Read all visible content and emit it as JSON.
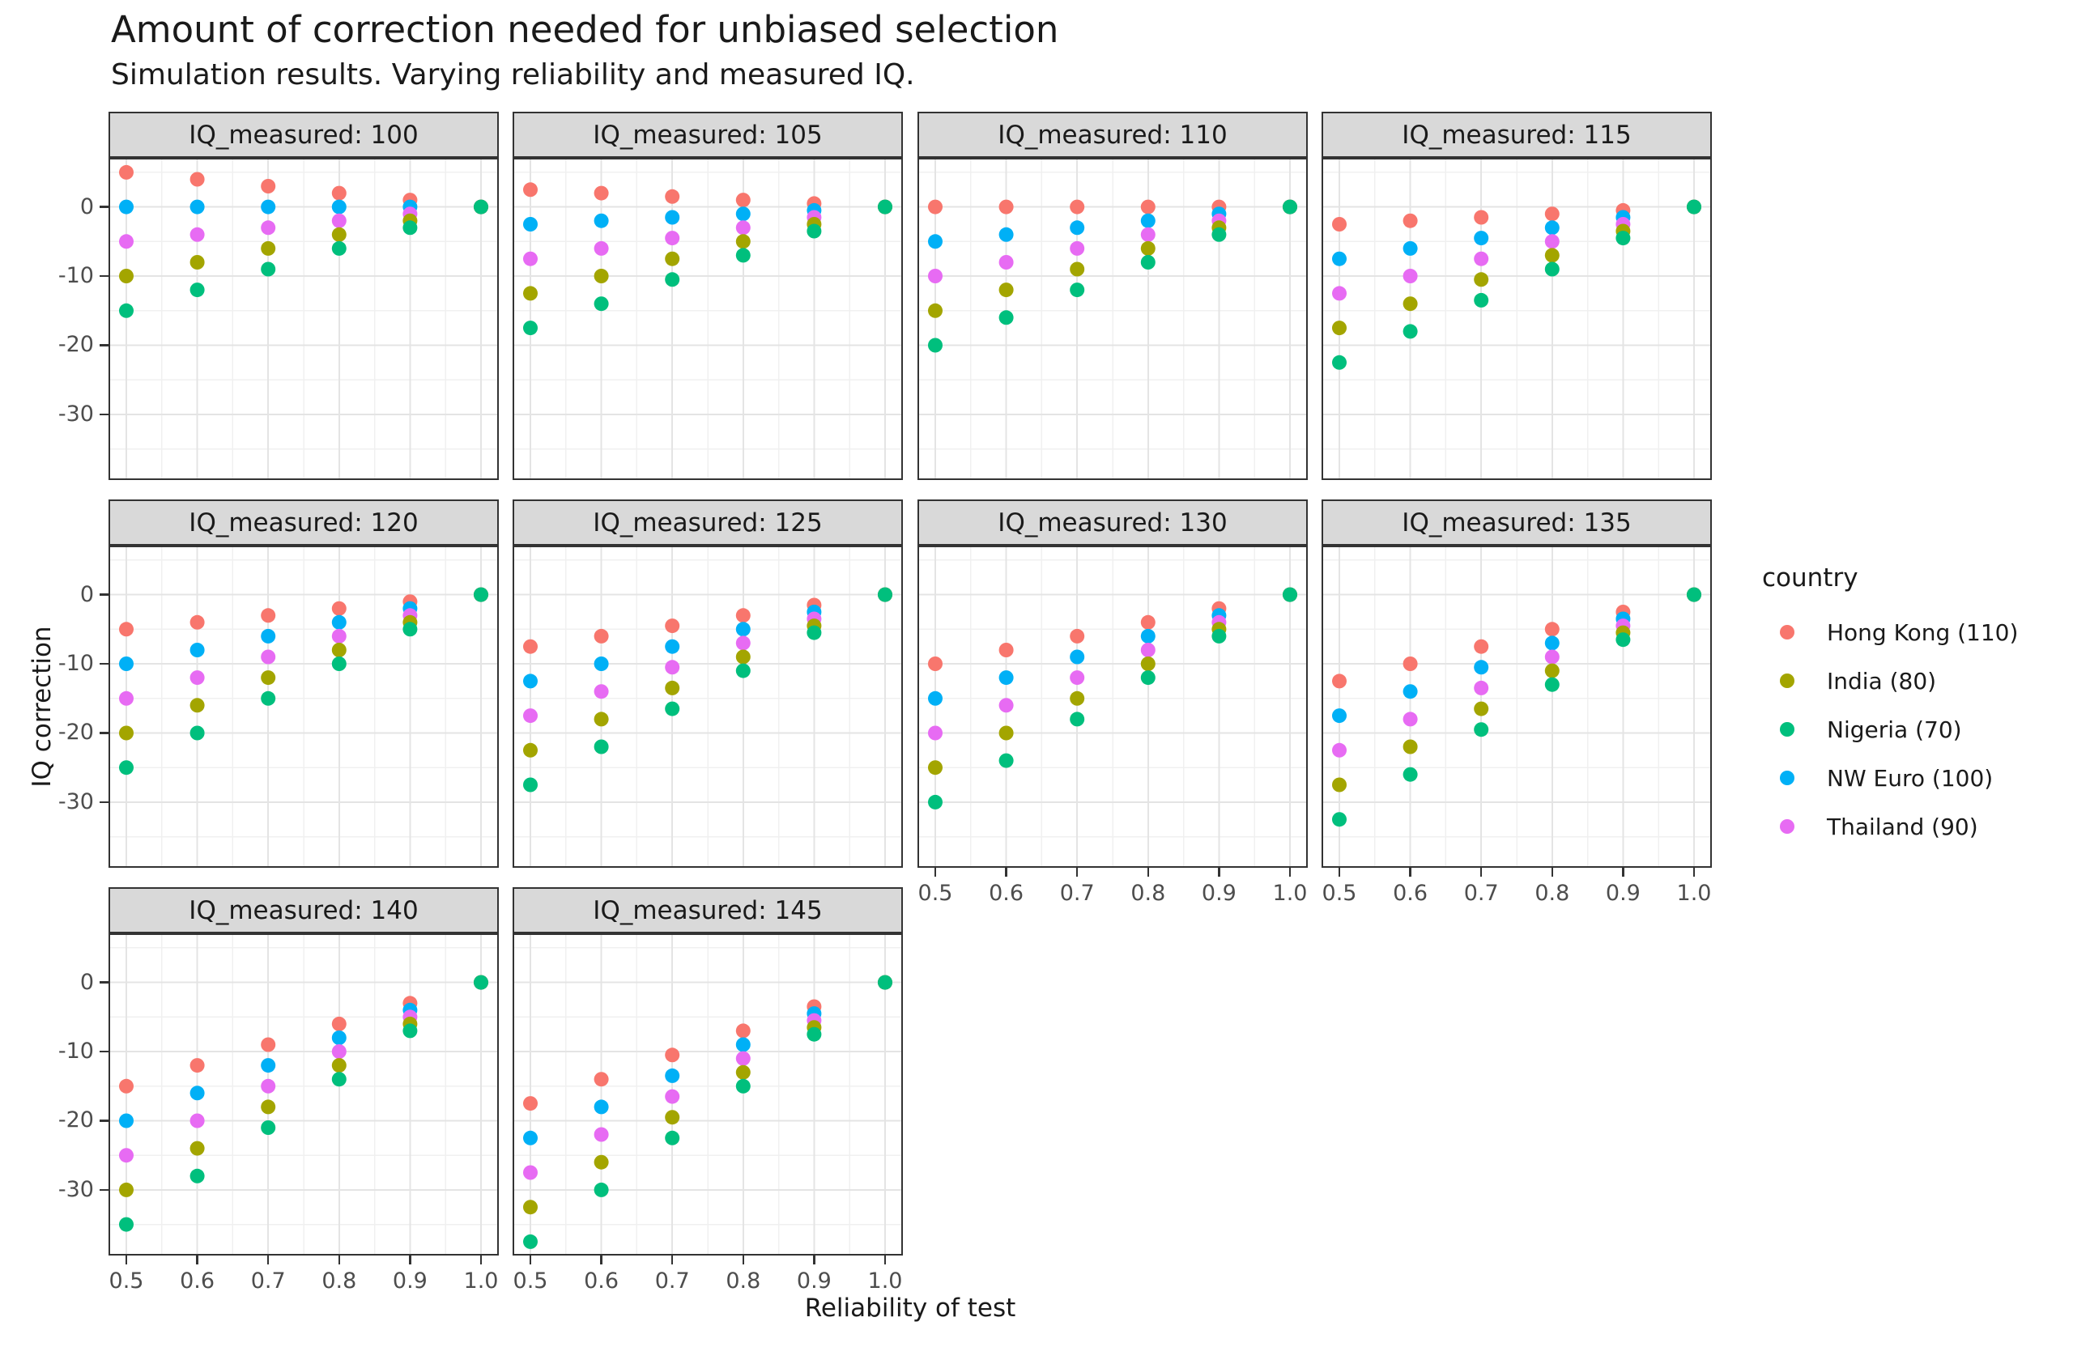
{
  "title": "Amount of correction needed for unbiased selection",
  "subtitle": "Simulation results. Varying reliability and measured IQ.",
  "axes": {
    "x_title": "Reliability of test",
    "y_title": "IQ correction",
    "x_tick_labels": [
      "0.5",
      "0.6",
      "0.7",
      "0.8",
      "0.9",
      "1.0"
    ],
    "y_tick_labels": [
      "0",
      "-10",
      "-20",
      "-30"
    ]
  },
  "legend": {
    "title": "country",
    "entries": [
      {
        "label": "Hong Kong (110)",
        "color": "#F8766D"
      },
      {
        "label": "India (80)",
        "color": "#A3A500"
      },
      {
        "label": "Nigeria (70)",
        "color": "#00BF7D"
      },
      {
        "label": "NW Euro (100)",
        "color": "#00B0F6"
      },
      {
        "label": "Thailand (90)",
        "color": "#E76BF3"
      }
    ],
    "position": "right"
  },
  "chart_data": {
    "type": "scatter",
    "facet_variable": "IQ_measured",
    "xlabel": "Reliability of test",
    "ylabel": "IQ correction",
    "x": [
      0.5,
      0.6,
      0.7,
      0.8,
      0.9,
      1.0
    ],
    "xlim": [
      0.475,
      1.025
    ],
    "ylim": [
      -39.5,
      7.1
    ],
    "x_ticks": [
      0.5,
      0.6,
      0.7,
      0.8,
      0.9,
      1.0
    ],
    "y_ticks": [
      0,
      -10,
      -20,
      -30
    ],
    "x_minor_ticks": [
      0.55,
      0.65,
      0.75,
      0.85,
      0.95
    ],
    "y_minor_ticks": [
      5,
      -5,
      -15,
      -25,
      -35
    ],
    "grid": true,
    "legend_title": "country",
    "facets": [
      {
        "label": "IQ_measured: 100",
        "iq_measured": 100,
        "series": [
          {
            "name": "Hong Kong (110)",
            "values": [
              5,
              4,
              3,
              2,
              1,
              0
            ]
          },
          {
            "name": "India (80)",
            "values": [
              -10,
              -8,
              -6,
              -4,
              -2,
              0
            ]
          },
          {
            "name": "Nigeria (70)",
            "values": [
              -15,
              -12,
              -9,
              -6,
              -3,
              0
            ]
          },
          {
            "name": "NW Euro (100)",
            "values": [
              0,
              0,
              0,
              0,
              0,
              0
            ]
          },
          {
            "name": "Thailand (90)",
            "values": [
              -5,
              -4,
              -3,
              -2,
              -1,
              0
            ]
          }
        ]
      },
      {
        "label": "IQ_measured: 105",
        "iq_measured": 105,
        "series": [
          {
            "name": "Hong Kong (110)",
            "values": [
              2.5,
              2,
              1.5,
              1,
              0.5,
              0
            ]
          },
          {
            "name": "India (80)",
            "values": [
              -12.5,
              -10,
              -7.5,
              -5,
              -2.5,
              0
            ]
          },
          {
            "name": "Nigeria (70)",
            "values": [
              -17.5,
              -14,
              -10.5,
              -7,
              -3.5,
              0
            ]
          },
          {
            "name": "NW Euro (100)",
            "values": [
              -2.5,
              -2,
              -1.5,
              -1,
              -0.5,
              0
            ]
          },
          {
            "name": "Thailand (90)",
            "values": [
              -7.5,
              -6,
              -4.5,
              -3,
              -1.5,
              0
            ]
          }
        ]
      },
      {
        "label": "IQ_measured: 110",
        "iq_measured": 110,
        "series": [
          {
            "name": "Hong Kong (110)",
            "values": [
              0,
              0,
              0,
              0,
              0,
              0
            ]
          },
          {
            "name": "India (80)",
            "values": [
              -15,
              -12,
              -9,
              -6,
              -3,
              0
            ]
          },
          {
            "name": "Nigeria (70)",
            "values": [
              -20,
              -16,
              -12,
              -8,
              -4,
              0
            ]
          },
          {
            "name": "NW Euro (100)",
            "values": [
              -5,
              -4,
              -3,
              -2,
              -1,
              0
            ]
          },
          {
            "name": "Thailand (90)",
            "values": [
              -10,
              -8,
              -6,
              -4,
              -2,
              0
            ]
          }
        ]
      },
      {
        "label": "IQ_measured: 115",
        "iq_measured": 115,
        "series": [
          {
            "name": "Hong Kong (110)",
            "values": [
              -2.5,
              -2,
              -1.5,
              -1,
              -0.5,
              0
            ]
          },
          {
            "name": "India (80)",
            "values": [
              -17.5,
              -14,
              -10.5,
              -7,
              -3.5,
              0
            ]
          },
          {
            "name": "Nigeria (70)",
            "values": [
              -22.5,
              -18,
              -13.5,
              -9,
              -4.5,
              0
            ]
          },
          {
            "name": "NW Euro (100)",
            "values": [
              -7.5,
              -6,
              -4.5,
              -3,
              -1.5,
              0
            ]
          },
          {
            "name": "Thailand (90)",
            "values": [
              -12.5,
              -10,
              -7.5,
              -5,
              -2.5,
              0
            ]
          }
        ]
      },
      {
        "label": "IQ_measured: 120",
        "iq_measured": 120,
        "series": [
          {
            "name": "Hong Kong (110)",
            "values": [
              -5,
              -4,
              -3,
              -2,
              -1,
              0
            ]
          },
          {
            "name": "India (80)",
            "values": [
              -20,
              -16,
              -12,
              -8,
              -4,
              0
            ]
          },
          {
            "name": "Nigeria (70)",
            "values": [
              -25,
              -20,
              -15,
              -10,
              -5,
              0
            ]
          },
          {
            "name": "NW Euro (100)",
            "values": [
              -10,
              -8,
              -6,
              -4,
              -2,
              0
            ]
          },
          {
            "name": "Thailand (90)",
            "values": [
              -15,
              -12,
              -9,
              -6,
              -3,
              0
            ]
          }
        ]
      },
      {
        "label": "IQ_measured: 125",
        "iq_measured": 125,
        "series": [
          {
            "name": "Hong Kong (110)",
            "values": [
              -7.5,
              -6,
              -4.5,
              -3,
              -1.5,
              0
            ]
          },
          {
            "name": "India (80)",
            "values": [
              -22.5,
              -18,
              -13.5,
              -9,
              -4.5,
              0
            ]
          },
          {
            "name": "Nigeria (70)",
            "values": [
              -27.5,
              -22,
              -16.5,
              -11,
              -5.5,
              0
            ]
          },
          {
            "name": "NW Euro (100)",
            "values": [
              -12.5,
              -10,
              -7.5,
              -5,
              -2.5,
              0
            ]
          },
          {
            "name": "Thailand (90)",
            "values": [
              -17.5,
              -14,
              -10.5,
              -7,
              -3.5,
              0
            ]
          }
        ]
      },
      {
        "label": "IQ_measured: 130",
        "iq_measured": 130,
        "series": [
          {
            "name": "Hong Kong (110)",
            "values": [
              -10,
              -8,
              -6,
              -4,
              -2,
              0
            ]
          },
          {
            "name": "India (80)",
            "values": [
              -25,
              -20,
              -15,
              -10,
              -5,
              0
            ]
          },
          {
            "name": "Nigeria (70)",
            "values": [
              -30,
              -24,
              -18,
              -12,
              -6,
              0
            ]
          },
          {
            "name": "NW Euro (100)",
            "values": [
              -15,
              -12,
              -9,
              -6,
              -3,
              0
            ]
          },
          {
            "name": "Thailand (90)",
            "values": [
              -20,
              -16,
              -12,
              -8,
              -4,
              0
            ]
          }
        ]
      },
      {
        "label": "IQ_measured: 135",
        "iq_measured": 135,
        "series": [
          {
            "name": "Hong Kong (110)",
            "values": [
              -12.5,
              -10,
              -7.5,
              -5,
              -2.5,
              0
            ]
          },
          {
            "name": "India (80)",
            "values": [
              -27.5,
              -22,
              -16.5,
              -11,
              -5.5,
              0
            ]
          },
          {
            "name": "Nigeria (70)",
            "values": [
              -32.5,
              -26,
              -19.5,
              -13,
              -6.5,
              0
            ]
          },
          {
            "name": "NW Euro (100)",
            "values": [
              -17.5,
              -14,
              -10.5,
              -7,
              -3.5,
              0
            ]
          },
          {
            "name": "Thailand (90)",
            "values": [
              -22.5,
              -18,
              -13.5,
              -9,
              -4.5,
              0
            ]
          }
        ]
      },
      {
        "label": "IQ_measured: 140",
        "iq_measured": 140,
        "series": [
          {
            "name": "Hong Kong (110)",
            "values": [
              -15,
              -12,
              -9,
              -6,
              -3,
              0
            ]
          },
          {
            "name": "India (80)",
            "values": [
              -30,
              -24,
              -18,
              -12,
              -6,
              0
            ]
          },
          {
            "name": "Nigeria (70)",
            "values": [
              -35,
              -28,
              -21,
              -14,
              -7,
              0
            ]
          },
          {
            "name": "NW Euro (100)",
            "values": [
              -20,
              -16,
              -12,
              -8,
              -4,
              0
            ]
          },
          {
            "name": "Thailand (90)",
            "values": [
              -25,
              -20,
              -15,
              -10,
              -5,
              0
            ]
          }
        ]
      },
      {
        "label": "IQ_measured: 145",
        "iq_measured": 145,
        "series": [
          {
            "name": "Hong Kong (110)",
            "values": [
              -17.5,
              -14,
              -10.5,
              -7,
              -3.5,
              0
            ]
          },
          {
            "name": "India (80)",
            "values": [
              -32.5,
              -26,
              -19.5,
              -13,
              -6.5,
              0
            ]
          },
          {
            "name": "Nigeria (70)",
            "values": [
              -37.5,
              -30,
              -22.5,
              -15,
              -7.5,
              0
            ]
          },
          {
            "name": "NW Euro (100)",
            "values": [
              -22.5,
              -18,
              -13.5,
              -9,
              -4.5,
              0
            ]
          },
          {
            "name": "Thailand (90)",
            "values": [
              -27.5,
              -22,
              -16.5,
              -11,
              -5.5,
              0
            ]
          }
        ]
      }
    ],
    "style": {
      "panel_background": "#FFFFFF",
      "panel_border": "#333333",
      "grid_major": "#E4E4E4",
      "grid_minor": "#F0F0F0",
      "strip_fill": "#D9D9D9",
      "tick_color": "#333333",
      "tick_label_color": "#4D4D4D"
    }
  }
}
